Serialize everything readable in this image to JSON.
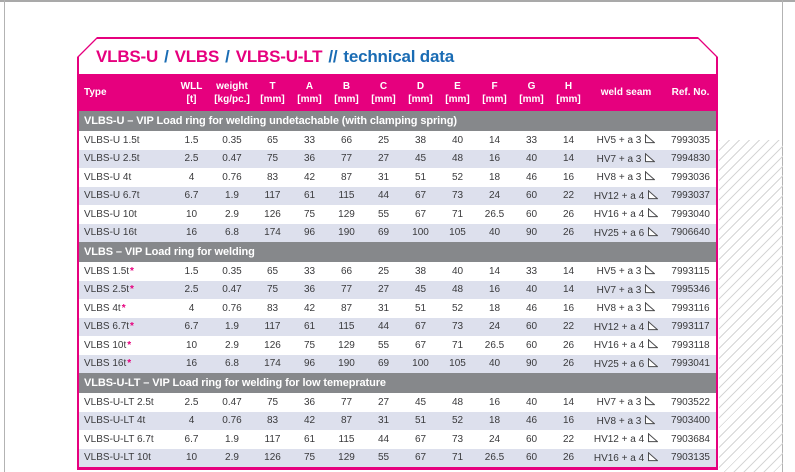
{
  "colors": {
    "accent_magenta": "#e6007e",
    "accent_blue": "#1a6cb4",
    "section_gray": "#86888b",
    "row_alt": "#dde0ed",
    "text_dark": "#3a3a3c",
    "hatch_gray": "#d6d6d6"
  },
  "title": {
    "segments": [
      {
        "text": "VLBS-U"
      },
      {
        "text": "/"
      },
      {
        "text": "VLBS"
      },
      {
        "text": "/"
      },
      {
        "text": "VLBS-U-LT"
      },
      {
        "text": "//"
      },
      {
        "text": "technical data"
      }
    ]
  },
  "table": {
    "columns": [
      {
        "label": "Type",
        "unit": ""
      },
      {
        "label": "WLL",
        "unit": "[t]"
      },
      {
        "label": "weight",
        "unit": "[kg/pc.]"
      },
      {
        "label": "T",
        "unit": "[mm]"
      },
      {
        "label": "A",
        "unit": "[mm]"
      },
      {
        "label": "B",
        "unit": "[mm]"
      },
      {
        "label": "C",
        "unit": "[mm]"
      },
      {
        "label": "D",
        "unit": "[mm]"
      },
      {
        "label": "E",
        "unit": "[mm]"
      },
      {
        "label": "F",
        "unit": "[mm]"
      },
      {
        "label": "G",
        "unit": "[mm]"
      },
      {
        "label": "H",
        "unit": "[mm]"
      },
      {
        "label": "weld seam",
        "unit": ""
      },
      {
        "label": "Ref. No.",
        "unit": ""
      }
    ],
    "weld_icon": "fillet-weld-triangle-icon",
    "sections": [
      {
        "title": "VLBS-U – VIP Load ring for welding undetachable (with clamping spring)",
        "rows": [
          {
            "type": "VLBS-U 1.5t",
            "star": false,
            "values": [
              "1.5",
              "0.35",
              "65",
              "33",
              "66",
              "25",
              "38",
              "40",
              "14",
              "33",
              "14"
            ],
            "weld": "HV5 + a 3",
            "ref": "7993035"
          },
          {
            "type": "VLBS-U 2.5t",
            "star": false,
            "values": [
              "2.5",
              "0.47",
              "75",
              "36",
              "77",
              "27",
              "45",
              "48",
              "16",
              "40",
              "14"
            ],
            "weld": "HV7 + a 3",
            "ref": "7994830"
          },
          {
            "type": "VLBS-U 4t",
            "star": false,
            "values": [
              "4",
              "0.76",
              "83",
              "42",
              "87",
              "31",
              "51",
              "52",
              "18",
              "46",
              "16"
            ],
            "weld": "HV8 + a 3",
            "ref": "7993036"
          },
          {
            "type": "VLBS-U 6.7t",
            "star": false,
            "values": [
              "6.7",
              "1.9",
              "117",
              "61",
              "115",
              "44",
              "67",
              "73",
              "24",
              "60",
              "22"
            ],
            "weld": "HV12 + a 4",
            "ref": "7993037"
          },
          {
            "type": "VLBS-U 10t",
            "star": false,
            "values": [
              "10",
              "2.9",
              "126",
              "75",
              "129",
              "55",
              "67",
              "71",
              "26.5",
              "60",
              "26"
            ],
            "weld": "HV16 + a 4",
            "ref": "7993040"
          },
          {
            "type": "VLBS-U 16t",
            "star": false,
            "values": [
              "16",
              "6.8",
              "174",
              "96",
              "190",
              "69",
              "100",
              "105",
              "40",
              "90",
              "26"
            ],
            "weld": "HV25 + a 6",
            "ref": "7906640"
          }
        ]
      },
      {
        "title": "VLBS – VIP Load ring for welding",
        "rows": [
          {
            "type": "VLBS 1.5t",
            "star": true,
            "values": [
              "1.5",
              "0.35",
              "65",
              "33",
              "66",
              "25",
              "38",
              "40",
              "14",
              "33",
              "14"
            ],
            "weld": "HV5 + a 3",
            "ref": "7993115"
          },
          {
            "type": "VLBS 2.5t",
            "star": true,
            "values": [
              "2.5",
              "0.47",
              "75",
              "36",
              "77",
              "27",
              "45",
              "48",
              "16",
              "40",
              "14"
            ],
            "weld": "HV7 + a 3",
            "ref": "7995346"
          },
          {
            "type": "VLBS 4t",
            "star": true,
            "values": [
              "4",
              "0.76",
              "83",
              "42",
              "87",
              "31",
              "51",
              "52",
              "18",
              "46",
              "16"
            ],
            "weld": "HV8 + a 3",
            "ref": "7993116"
          },
          {
            "type": "VLBS 6.7t",
            "star": true,
            "values": [
              "6.7",
              "1.9",
              "117",
              "61",
              "115",
              "44",
              "67",
              "73",
              "24",
              "60",
              "22"
            ],
            "weld": "HV12 + a 4",
            "ref": "7993117"
          },
          {
            "type": "VLBS 10t",
            "star": true,
            "values": [
              "10",
              "2.9",
              "126",
              "75",
              "129",
              "55",
              "67",
              "71",
              "26.5",
              "60",
              "26"
            ],
            "weld": "HV16 + a 4",
            "ref": "7993118"
          },
          {
            "type": "VLBS 16t",
            "star": true,
            "values": [
              "16",
              "6.8",
              "174",
              "96",
              "190",
              "69",
              "100",
              "105",
              "40",
              "90",
              "26"
            ],
            "weld": "HV25 + a 6",
            "ref": "7993041"
          }
        ]
      },
      {
        "title": "VLBS-U-LT – VIP Load ring for welding for low temeprature",
        "rows": [
          {
            "type": "VLBS-U-LT 2.5t",
            "star": false,
            "values": [
              "2.5",
              "0.47",
              "75",
              "36",
              "77",
              "27",
              "45",
              "48",
              "16",
              "40",
              "14"
            ],
            "weld": "HV7 + a 3",
            "ref": "7903522"
          },
          {
            "type": "VLBS-U-LT 4t",
            "star": false,
            "values": [
              "4",
              "0.76",
              "83",
              "42",
              "87",
              "31",
              "51",
              "52",
              "18",
              "46",
              "16"
            ],
            "weld": "HV8 + a 3",
            "ref": "7903400"
          },
          {
            "type": "VLBS-U-LT 6.7t",
            "star": false,
            "values": [
              "6.7",
              "1.9",
              "117",
              "61",
              "115",
              "44",
              "67",
              "73",
              "24",
              "60",
              "22"
            ],
            "weld": "HV12 + a 4",
            "ref": "7903684"
          },
          {
            "type": "VLBS-U-LT 10t",
            "star": false,
            "values": [
              "10",
              "2.9",
              "126",
              "75",
              "129",
              "55",
              "67",
              "71",
              "26.5",
              "60",
              "26"
            ],
            "weld": "HV16 + a 4",
            "ref": "7903135"
          }
        ]
      }
    ]
  }
}
